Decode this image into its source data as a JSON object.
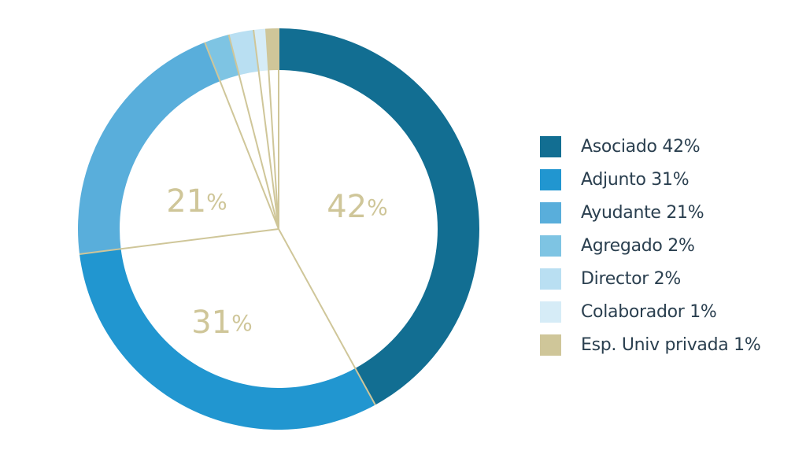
{
  "chart_data": {
    "type": "pie",
    "style": "donut",
    "slices": [
      {
        "name": "Asociado",
        "value": 42,
        "label": "42",
        "legend": "Asociado 42%",
        "color": "#126e92"
      },
      {
        "name": "Adjunto",
        "value": 31,
        "label": "31",
        "legend": "Adjunto 31%",
        "color": "#2196d0"
      },
      {
        "name": "Ayudante",
        "value": 21,
        "label": "21",
        "legend": "Ayudante 21%",
        "color": "#59aedb"
      },
      {
        "name": "Agregado",
        "value": 2,
        "label": "",
        "legend": "Agregado 2%",
        "color": "#7ec4e3"
      },
      {
        "name": "Director",
        "value": 2,
        "label": "",
        "legend": "Director 2%",
        "color": "#b9dff2"
      },
      {
        "name": "Colaborador",
        "value": 1,
        "label": "",
        "legend": "Colaborador 1%",
        "color": "#d6ecf7"
      },
      {
        "name": "Esp. Univ privada",
        "value": 1,
        "label": "",
        "legend": "Esp. Univ privada 1%",
        "color": "#cfc699"
      }
    ],
    "percent_sign": "%",
    "divider_color": "#cfc699",
    "label_color": "#cfc699",
    "legend_position": "right"
  }
}
